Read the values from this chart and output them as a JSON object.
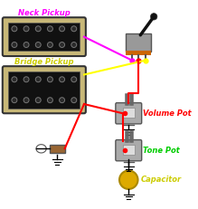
{
  "bg_color": "#ffffff",
  "neck_pickup_label": "Neck Pickup",
  "bridge_pickup_label": "Bridge Pickup",
  "volume_pot_label": "Volume Pot",
  "tone_pot_label": "Tone Pot",
  "capacitor_label": "Capacitor",
  "neck_label_color": "#ff00ff",
  "bridge_label_color": "#cccc00",
  "volume_label_color": "#ff0000",
  "tone_label_color": "#00cc00",
  "cap_label_color": "#cccc00",
  "pickup_body_color": "#c8b878",
  "pickup_dark": "#111111",
  "pickup_border": "#333333",
  "wire_magenta": "#ff00ff",
  "wire_yellow": "#ffff00",
  "wire_red": "#ff0000",
  "switch_gray": "#999999",
  "switch_orange": "#cc6600",
  "switch_tip": "#111111",
  "pot_body": "#aaaaaa",
  "pot_dark": "#888888",
  "pot_shaft": "#666666",
  "cap_color": "#ddaa00",
  "cap_edge": "#aa8800",
  "ground_color": "#000000",
  "jack_color": "#996633"
}
